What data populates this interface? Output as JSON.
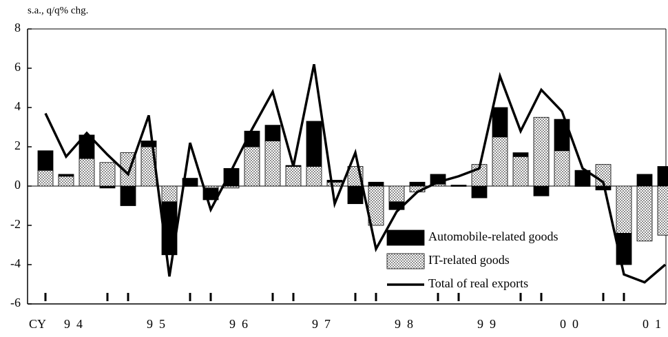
{
  "chart_data": {
    "type": "bar",
    "y_label": "s.a., q/q% chg.",
    "x_label": "CY",
    "categories": [
      null,
      "94",
      null,
      null,
      null,
      "95",
      null,
      null,
      null,
      "96",
      null,
      null,
      null,
      "97",
      null,
      null,
      null,
      "98",
      null,
      null,
      null,
      "99",
      null,
      null,
      null,
      "00",
      null,
      null,
      null,
      "01",
      null
    ],
    "ylim": [
      -6,
      8
    ],
    "yticks": [
      -6,
      -4,
      -2,
      0,
      2,
      4,
      6,
      8
    ],
    "legend": "lower-right",
    "series": [
      {
        "name": "Automobile-related goods",
        "type": "bar",
        "color": "#000000",
        "values": [
          1.0,
          0.1,
          1.2,
          -0.1,
          -1.0,
          0.3,
          -2.7,
          0.4,
          -0.6,
          0.9,
          0.8,
          0.8,
          0.05,
          2.3,
          0.1,
          -0.9,
          0.2,
          -0.4,
          0.2,
          0.5,
          0.05,
          -0.6,
          1.5,
          0.2,
          -0.5,
          1.6,
          0.8,
          -0.2,
          -1.6,
          0.6,
          1.0
        ]
      },
      {
        "name": "IT-related goods",
        "type": "bar",
        "color": "#8c8c8c",
        "values": [
          0.8,
          0.5,
          1.4,
          1.2,
          1.7,
          2.0,
          -0.8,
          0.0,
          -0.1,
          -0.1,
          2.0,
          2.3,
          1.0,
          1.0,
          0.2,
          1.0,
          -2.0,
          -0.8,
          -0.3,
          0.1,
          0.0,
          1.1,
          2.5,
          1.5,
          3.5,
          1.8,
          0.0,
          1.1,
          -2.4,
          -2.8,
          -2.5
        ]
      },
      {
        "name": "Total of real exports",
        "type": "line",
        "color": "#000000",
        "values": [
          3.7,
          1.5,
          2.7,
          1.6,
          0.6,
          3.6,
          -4.6,
          2.2,
          -1.2,
          0.8,
          2.9,
          4.8,
          1.0,
          6.2,
          -0.9,
          1.7,
          -3.2,
          -1.3,
          -0.3,
          0.2,
          0.5,
          0.9,
          5.6,
          2.8,
          4.9,
          3.8,
          0.9,
          0.2,
          -4.5,
          -4.9,
          -4.0
        ]
      }
    ]
  }
}
